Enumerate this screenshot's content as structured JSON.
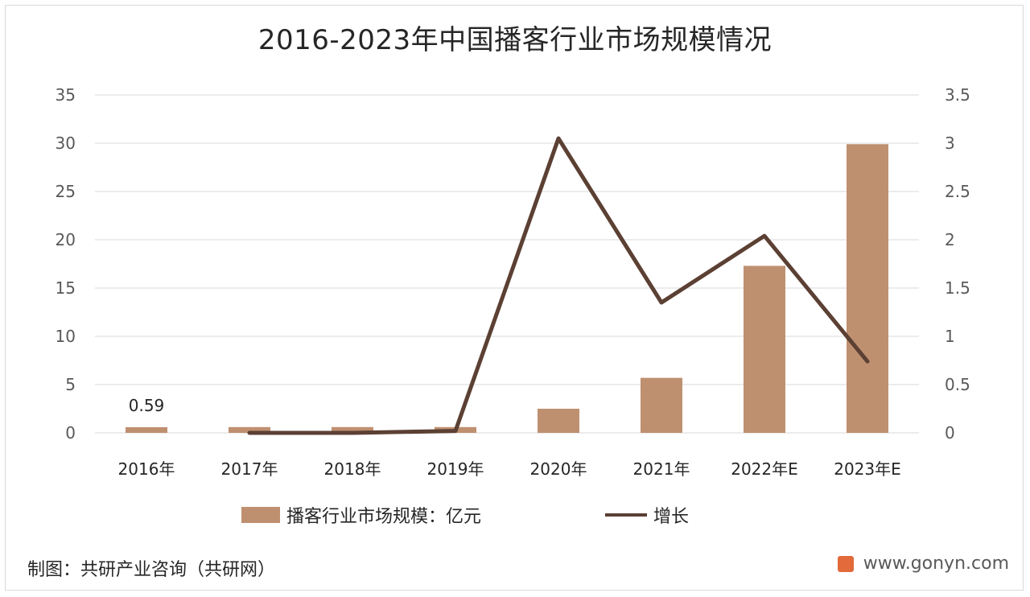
{
  "chart_data": {
    "type": "bar",
    "title": "2016-2023年中国播客行业市场规模情况",
    "categories": [
      "2016年",
      "2017年",
      "2018年",
      "2019年",
      "2020年",
      "2021年",
      "2022年E",
      "2023年E"
    ],
    "series": [
      {
        "name": "播客行业市场规模：亿元",
        "type": "bar",
        "axis": "left",
        "values": [
          0.59,
          0.6,
          0.6,
          0.6,
          2.5,
          5.7,
          17.3,
          29.9
        ]
      },
      {
        "name": "增长",
        "type": "line",
        "axis": "right",
        "values": [
          null,
          0.0,
          0.0,
          0.02,
          3.05,
          1.35,
          2.04,
          0.74
        ]
      }
    ],
    "data_labels": [
      {
        "category": "2016年",
        "text": "0.59"
      }
    ],
    "ylim_left": [
      0,
      35
    ],
    "yticks_left": [
      "0",
      "5",
      "10",
      "15",
      "20",
      "25",
      "30",
      "35"
    ],
    "ylim_right": [
      0,
      3.5
    ],
    "yticks_right": [
      "0",
      "0.5",
      "1",
      "1.5",
      "2",
      "2.5",
      "3",
      "3.5"
    ],
    "grid": true,
    "legend_position": "bottom",
    "colors": {
      "bar": "#bf9070",
      "line": "#5b4033",
      "grid": "#d9d9d9",
      "text": "#262626"
    }
  },
  "footer": {
    "source": "制图：共研产业咨询（共研网）",
    "website": "www.gonyn.com"
  }
}
